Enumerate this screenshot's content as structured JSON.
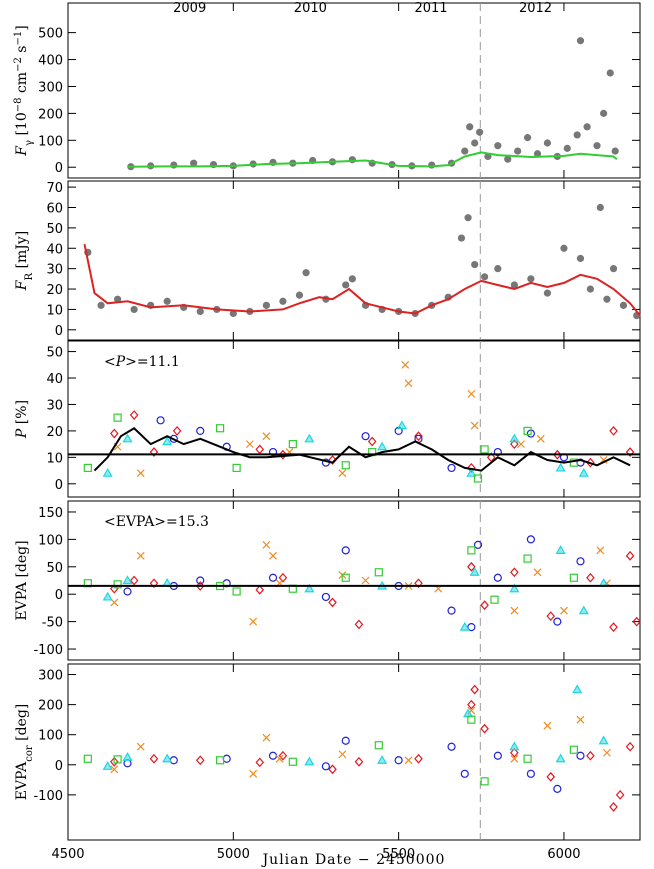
{
  "chart_data": [
    {
      "type": "scatter",
      "ylabel": [
        {
          "text": "F",
          "italic": true
        },
        {
          "text": "γ",
          "sub": true
        },
        {
          "text": " [10"
        },
        {
          "text": "−8",
          "sup": true
        },
        {
          "text": " cm"
        },
        {
          "text": "−2",
          "sup": true
        },
        {
          "text": " s"
        },
        {
          "text": "−1",
          "sup": true
        },
        {
          "text": "]"
        }
      ],
      "xlim": [
        4500,
        6230
      ],
      "xticks": [
        4500,
        5000,
        5500,
        6000
      ],
      "show_xtick_labels": false,
      "top_ticks": [
        {
          "value": 4868,
          "label": "2009"
        },
        {
          "value": 5233,
          "label": "2010"
        },
        {
          "value": 5598,
          "label": "2011"
        },
        {
          "value": 5914,
          "label": "2012"
        }
      ],
      "ylim": [
        -40,
        610
      ],
      "yticks": [
        0,
        100,
        200,
        300,
        400,
        500
      ],
      "vline": 5747,
      "series": [
        {
          "marker": "dot",
          "color": "#777777",
          "x": [
            4690,
            4750,
            4820,
            4880,
            4940,
            5000,
            5060,
            5120,
            5180,
            5240,
            5300,
            5360,
            5420,
            5480,
            5540,
            5600,
            5660,
            5700,
            5715,
            5730,
            5745,
            5770,
            5800,
            5830,
            5860,
            5890,
            5920,
            5950,
            5980,
            6010,
            6040,
            6050,
            6070,
            6100,
            6120,
            6140,
            6155
          ],
          "values": [
            2,
            5,
            8,
            15,
            10,
            5,
            12,
            18,
            15,
            25,
            20,
            28,
            15,
            10,
            5,
            8,
            15,
            60,
            150,
            90,
            130,
            40,
            80,
            30,
            60,
            110,
            50,
            90,
            40,
            70,
            120,
            470,
            150,
            80,
            200,
            350,
            60
          ]
        },
        {
          "marker": "line",
          "color": "#33cc33",
          "x": [
            4680,
            4800,
            4900,
            5000,
            5100,
            5200,
            5300,
            5400,
            5500,
            5600,
            5650,
            5700,
            5750,
            5800,
            5900,
            6000,
            6050,
            6100,
            6150,
            6160
          ],
          "values": [
            2,
            3,
            3,
            5,
            12,
            15,
            20,
            25,
            5,
            3,
            8,
            40,
            55,
            45,
            38,
            42,
            50,
            45,
            40,
            30
          ]
        }
      ]
    },
    {
      "type": "scatter",
      "ylabel": [
        {
          "text": "F",
          "italic": true
        },
        {
          "text": "R",
          "sub": true
        },
        {
          "text": " [mJy]"
        }
      ],
      "xlim": [
        4500,
        6230
      ],
      "xticks": [
        4500,
        5000,
        5500,
        6000
      ],
      "show_xtick_labels": false,
      "ylim": [
        -5,
        73
      ],
      "yticks": [
        0,
        10,
        20,
        30,
        40,
        50,
        60,
        70
      ],
      "vline": 5747,
      "series": [
        {
          "marker": "dot",
          "color": "#777777",
          "x": [
            4560,
            4600,
            4650,
            4700,
            4750,
            4800,
            4850,
            4900,
            4950,
            5000,
            5050,
            5100,
            5150,
            5200,
            5220,
            5280,
            5340,
            5360,
            5400,
            5450,
            5500,
            5550,
            5600,
            5650,
            5690,
            5710,
            5730,
            5760,
            5800,
            5850,
            5900,
            5950,
            6000,
            6050,
            6080,
            6110,
            6130,
            6150,
            6180,
            6220
          ],
          "values": [
            38,
            12,
            15,
            10,
            12,
            14,
            11,
            9,
            10,
            8,
            9,
            12,
            14,
            17,
            28,
            15,
            22,
            25,
            12,
            10,
            9,
            8,
            12,
            16,
            45,
            55,
            32,
            26,
            30,
            22,
            25,
            18,
            40,
            35,
            20,
            60,
            15,
            30,
            12,
            7
          ]
        },
        {
          "marker": "line",
          "color": "#dd2222",
          "x": [
            4550,
            4580,
            4620,
            4680,
            4750,
            4850,
            4950,
            5050,
            5150,
            5200,
            5260,
            5300,
            5350,
            5400,
            5500,
            5550,
            5600,
            5650,
            5700,
            5750,
            5800,
            5850,
            5900,
            5950,
            6000,
            6050,
            6100,
            6150,
            6200,
            6230
          ],
          "values": [
            42,
            18,
            13,
            14,
            11,
            12,
            10,
            9,
            10,
            13,
            16,
            15,
            20,
            13,
            9,
            8,
            12,
            15,
            20,
            24,
            22,
            20,
            23,
            21,
            23,
            27,
            25,
            20,
            13,
            7
          ]
        }
      ]
    },
    {
      "type": "scatter",
      "ylabel": [
        {
          "text": "P",
          "italic": true
        },
        {
          "text": " [%]"
        }
      ],
      "annotation": [
        {
          "text": "<"
        },
        {
          "text": "P",
          "italic": true
        },
        {
          "text": ">=11.1"
        }
      ],
      "hline": 11.1,
      "xlim": [
        4500,
        6230
      ],
      "xticks": [
        4500,
        5000,
        5500,
        6000
      ],
      "show_xtick_labels": false,
      "ylim": [
        -5,
        54
      ],
      "yticks": [
        0,
        10,
        20,
        30,
        40,
        50
      ],
      "vline": 5747,
      "series": [
        {
          "marker": "diamond",
          "color": "#e8151b",
          "x": [
            4640,
            4700,
            4760,
            4830,
            5080,
            5150,
            5300,
            5420,
            5560,
            5720,
            5780,
            5850,
            5980,
            6080,
            6150,
            6200
          ],
          "values": [
            19,
            26,
            12,
            20,
            13,
            11,
            9,
            16,
            18,
            6,
            10,
            15,
            11,
            8,
            20,
            12
          ]
        },
        {
          "marker": "circle",
          "color": "#1f22d6",
          "x": [
            4780,
            4820,
            4900,
            4980,
            5120,
            5280,
            5400,
            5500,
            5560,
            5660,
            5800,
            5900,
            6000,
            6050
          ],
          "values": [
            24,
            17,
            20,
            14,
            12,
            8,
            18,
            20,
            17,
            6,
            12,
            19,
            10,
            8
          ]
        },
        {
          "marker": "x",
          "color": "#f08a1e",
          "x": [
            4650,
            4720,
            5050,
            5100,
            5170,
            5330,
            5520,
            5530,
            5720,
            5730,
            5870,
            5930,
            6120
          ],
          "values": [
            14,
            4,
            15,
            18,
            12,
            4,
            45,
            38,
            34,
            22,
            15,
            17,
            9
          ]
        },
        {
          "marker": "triangle",
          "color": "#1fd6e0",
          "x": [
            4620,
            4680,
            4800,
            5230,
            5450,
            5510,
            5720,
            5850,
            5990,
            6060
          ],
          "values": [
            4,
            17,
            16,
            17,
            14,
            22,
            4,
            17,
            6,
            4
          ]
        },
        {
          "marker": "square",
          "color": "#33cc33",
          "x": [
            4560,
            4650,
            4960,
            5010,
            5180,
            5340,
            5420,
            5740,
            5760,
            5890,
            6030
          ],
          "values": [
            6,
            25,
            21,
            6,
            15,
            7,
            12,
            2,
            13,
            20,
            8
          ]
        },
        {
          "marker": "line",
          "color": "#000000",
          "x": [
            4580,
            4620,
            4660,
            4700,
            4750,
            4800,
            4850,
            4900,
            5000,
            5050,
            5100,
            5200,
            5300,
            5350,
            5400,
            5450,
            5500,
            5550,
            5600,
            5650,
            5700,
            5750,
            5800,
            5850,
            5900,
            5950,
            6000,
            6050,
            6100,
            6150,
            6200
          ],
          "values": [
            5,
            10,
            18,
            21,
            15,
            18,
            15,
            17,
            12,
            10,
            10,
            11,
            8,
            14,
            10,
            12,
            13,
            16,
            13,
            9,
            6,
            5,
            10,
            7,
            12,
            9,
            8,
            9,
            7,
            10,
            7
          ]
        }
      ]
    },
    {
      "type": "scatter",
      "ylabel": [
        {
          "text": "EVPA [deg]"
        }
      ],
      "annotation": [
        {
          "text": "<EVPA>=15.3"
        }
      ],
      "hline": 15.3,
      "xlim": [
        4500,
        6230
      ],
      "xticks": [
        4500,
        5000,
        5500,
        6000
      ],
      "show_xtick_labels": false,
      "ylim": [
        -120,
        170
      ],
      "yticks": [
        -100,
        -50,
        0,
        50,
        100,
        150
      ],
      "vline": 5747,
      "series": [
        {
          "marker": "diamond",
          "color": "#e8151b",
          "x": [
            4640,
            4700,
            4760,
            4900,
            5080,
            5150,
            5300,
            5380,
            5560,
            5720,
            5760,
            5850,
            5960,
            6080,
            6150,
            6200,
            6220
          ],
          "values": [
            10,
            25,
            20,
            15,
            8,
            30,
            -15,
            -55,
            20,
            50,
            -20,
            40,
            -40,
            30,
            -60,
            70,
            -50
          ]
        },
        {
          "marker": "circle",
          "color": "#1f22d6",
          "x": [
            4680,
            4820,
            4900,
            4980,
            5120,
            5280,
            5340,
            5500,
            5660,
            5720,
            5740,
            5800,
            5900,
            5980,
            6050
          ],
          "values": [
            5,
            15,
            25,
            20,
            30,
            -5,
            80,
            15,
            -30,
            -60,
            90,
            30,
            100,
            -50,
            60
          ]
        },
        {
          "marker": "x",
          "color": "#f08a1e",
          "x": [
            4640,
            4720,
            5060,
            5100,
            5120,
            5140,
            5330,
            5400,
            5530,
            5620,
            5850,
            5920,
            6000,
            6110,
            6130
          ],
          "values": [
            -15,
            70,
            -50,
            90,
            70,
            20,
            35,
            25,
            15,
            10,
            -30,
            40,
            -30,
            80,
            20
          ]
        },
        {
          "marker": "triangle",
          "color": "#1fd6e0",
          "x": [
            4620,
            4680,
            4800,
            5230,
            5450,
            5700,
            5730,
            5850,
            5990,
            6060,
            6120
          ],
          "values": [
            -5,
            25,
            20,
            10,
            15,
            -60,
            40,
            10,
            80,
            -30,
            20
          ]
        },
        {
          "marker": "square",
          "color": "#33cc33",
          "x": [
            4560,
            4650,
            4960,
            5010,
            5180,
            5340,
            5440,
            5720,
            5790,
            5890,
            6030
          ],
          "values": [
            20,
            18,
            15,
            5,
            10,
            30,
            40,
            80,
            -10,
            65,
            30
          ]
        }
      ]
    },
    {
      "type": "scatter",
      "ylabel": [
        {
          "text": "EVPA"
        },
        {
          "text": "cor",
          "sub": true
        },
        {
          "text": " [deg]"
        }
      ],
      "xlabel": "Julian Date − 2450000",
      "xlim": [
        4500,
        6230
      ],
      "xticks": [
        4500,
        5000,
        5500,
        6000
      ],
      "show_xtick_labels": true,
      "ylim": [
        -250,
        335
      ],
      "yticks": [
        -100,
        0,
        100,
        200,
        300
      ],
      "vline": 5747,
      "series": [
        {
          "marker": "diamond",
          "color": "#e8151b",
          "x": [
            4640,
            4760,
            4900,
            5080,
            5150,
            5300,
            5380,
            5560,
            5720,
            5730,
            5760,
            5850,
            5960,
            6080,
            6150,
            6170,
            6200
          ],
          "values": [
            10,
            20,
            15,
            8,
            30,
            -15,
            10,
            20,
            200,
            250,
            120,
            40,
            -40,
            30,
            -140,
            -100,
            60
          ]
        },
        {
          "marker": "circle",
          "color": "#1f22d6",
          "x": [
            4680,
            4820,
            4980,
            5120,
            5280,
            5340,
            5500,
            5660,
            5700,
            5800,
            5900,
            5980,
            6050
          ],
          "values": [
            5,
            15,
            20,
            30,
            -5,
            80,
            15,
            60,
            -30,
            30,
            -30,
            -80,
            30
          ]
        },
        {
          "marker": "x",
          "color": "#f08a1e",
          "x": [
            4640,
            4720,
            5060,
            5100,
            5140,
            5330,
            5530,
            5720,
            5850,
            5950,
            6050,
            6130
          ],
          "values": [
            -15,
            60,
            -30,
            90,
            20,
            35,
            15,
            180,
            20,
            130,
            150,
            40
          ]
        },
        {
          "marker": "triangle",
          "color": "#1fd6e0",
          "x": [
            4620,
            4680,
            4800,
            5230,
            5450,
            5710,
            5850,
            5990,
            6040,
            6120
          ],
          "values": [
            -5,
            25,
            20,
            10,
            15,
            170,
            60,
            20,
            250,
            80
          ]
        },
        {
          "marker": "square",
          "color": "#33cc33",
          "x": [
            4560,
            4650,
            4960,
            5180,
            5440,
            5720,
            5760,
            5890,
            6030
          ],
          "values": [
            20,
            18,
            15,
            10,
            65,
            150,
            -55,
            20,
            50
          ]
        }
      ]
    }
  ]
}
